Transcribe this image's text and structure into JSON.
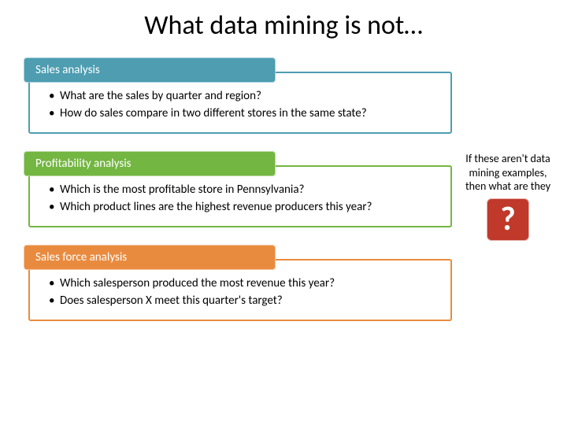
{
  "slide": {
    "title": "What data mining is not…"
  },
  "boxes": [
    {
      "header": "Sales analysis",
      "header_bg": "#4e9db1",
      "border_color": "#4e9db1",
      "bullets": [
        "What are the sales by quarter and region?",
        "How do sales compare in two different stores in the same state?"
      ]
    },
    {
      "header": "Profitability analysis",
      "header_bg": "#73b641",
      "border_color": "#73b641",
      "bullets": [
        "Which is the most profitable store in Pennsylvania?",
        "Which product lines are the highest revenue producers this year?"
      ]
    },
    {
      "header": "Sales force analysis",
      "header_bg": "#e98b3f",
      "border_color": "#e98b3f",
      "bullets": [
        "Which salesperson produced the most revenue this year?",
        "Does salesperson X meet this quarter's target?"
      ]
    }
  ],
  "callout": {
    "text": "If these aren't data mining examples, then what are they",
    "q": "?",
    "q_bg": "#c0392b"
  }
}
